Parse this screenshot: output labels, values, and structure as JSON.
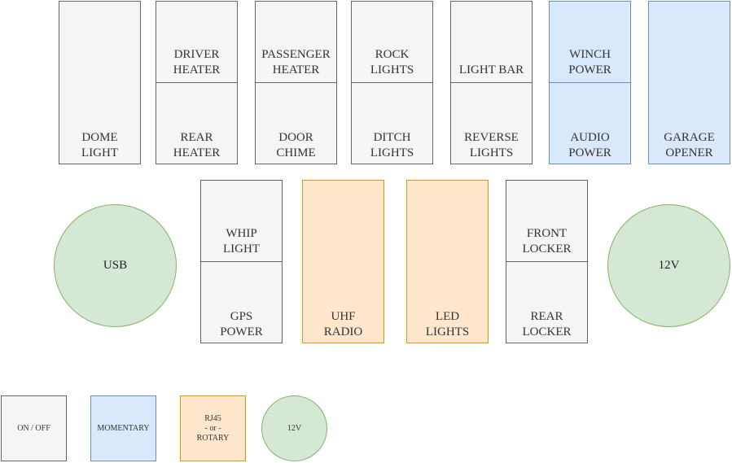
{
  "switches": {
    "dome": {
      "top": "",
      "bottom": "DOME\nLIGHT"
    },
    "driver": {
      "top": "DRIVER\nHEATER",
      "bottom": "REAR\nHEATER"
    },
    "pass": {
      "top": "PASSENGER\nHEATER",
      "bottom": "DOOR\nCHIME"
    },
    "rock": {
      "top": "ROCK\nLIGHTS",
      "bottom": "DITCH\nLIGHTS"
    },
    "bar": {
      "top": "LIGHT BAR",
      "bottom": "REVERSE\nLIGHTS"
    },
    "winch": {
      "top": "WINCH\nPOWER",
      "bottom": "AUDIO\nPOWER"
    },
    "garage": {
      "top": "",
      "bottom": "GARAGE\nOPENER"
    },
    "whip": {
      "top": "WHIP\nLIGHT",
      "bottom": "GPS\nPOWER"
    },
    "uhf": {
      "top": "",
      "bottom": "UHF\nRADIO"
    },
    "led": {
      "top": "",
      "bottom": "LED\nLIGHTS"
    },
    "locker": {
      "top": "FRONT\nLOCKER",
      "bottom": "REAR\nLOCKER"
    }
  },
  "sockets": {
    "usb": "USB",
    "v12": "12V"
  },
  "legend": {
    "onoff": "ON / OFF",
    "momentary": "MOMENTARY",
    "rj45": "RJ45\n- or -\nROTARY",
    "v12": "12V"
  },
  "colors": {
    "onoff_fill": "#f5f5f5",
    "onoff_stroke": "#666666",
    "momentary_fill": "#dae8fc",
    "momentary_stroke": "#6c8ebf",
    "rj45_fill": "#ffe6cc",
    "rj45_stroke": "#d79b00",
    "socket_fill": "#d5e8d4",
    "socket_stroke": "#82b366"
  }
}
